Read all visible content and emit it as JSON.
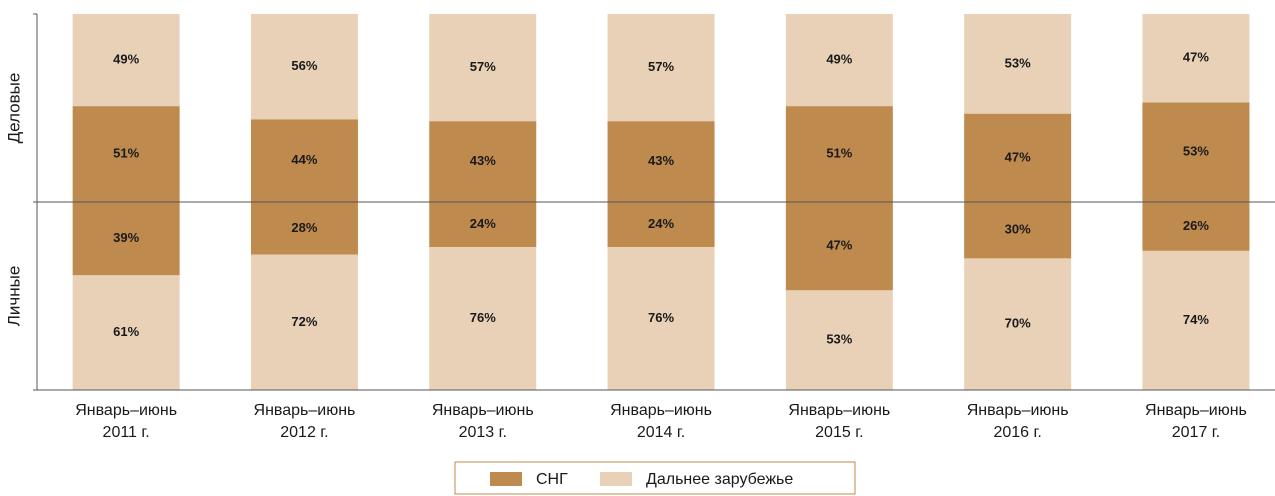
{
  "chart_data": {
    "type": "bar",
    "categories": [
      [
        "Январь–июнь",
        "2011 г."
      ],
      [
        "Январь–июнь",
        "2012 г."
      ],
      [
        "Январь–июнь",
        "2013 г."
      ],
      [
        "Январь–июнь",
        "2014 г."
      ],
      [
        "Январь–июнь",
        "2015 г."
      ],
      [
        "Январь–июнь",
        "2016 г."
      ],
      [
        "Январь–июнь",
        "2017 г."
      ]
    ],
    "legend": [
      {
        "name": "СНГ",
        "color": "#bf8a4e"
      },
      {
        "name": "Дальнее зарубежье",
        "color": "#e8d1b6"
      }
    ],
    "ylim": [
      0,
      100
    ],
    "panels": [
      {
        "label": "Деловые",
        "direction": "up",
        "series": [
          {
            "values": [
              51,
              44,
              43,
              43,
              51,
              47,
              53
            ],
            "value_labels": [
              "51%",
              "44%",
              "43%",
              "43%",
              "51%",
              "47%",
              "53%"
            ]
          },
          {
            "values": [
              49,
              56,
              57,
              57,
              49,
              53,
              47
            ],
            "value_labels": [
              "49%",
              "56%",
              "57%",
              "57%",
              "49%",
              "53%",
              "47%"
            ]
          }
        ]
      },
      {
        "label": "Личные",
        "direction": "down",
        "series": [
          {
            "values": [
              39,
              28,
              24,
              24,
              47,
              30,
              26
            ],
            "value_labels": [
              "39%",
              "28%",
              "24%",
              "24%",
              "47%",
              "30%",
              "26%"
            ]
          },
          {
            "values": [
              61,
              72,
              76,
              76,
              53,
              70,
              74
            ],
            "value_labels": [
              "61%",
              "72%",
              "76%",
              "76%",
              "53%",
              "70%",
              "74%"
            ]
          }
        ]
      }
    ]
  }
}
